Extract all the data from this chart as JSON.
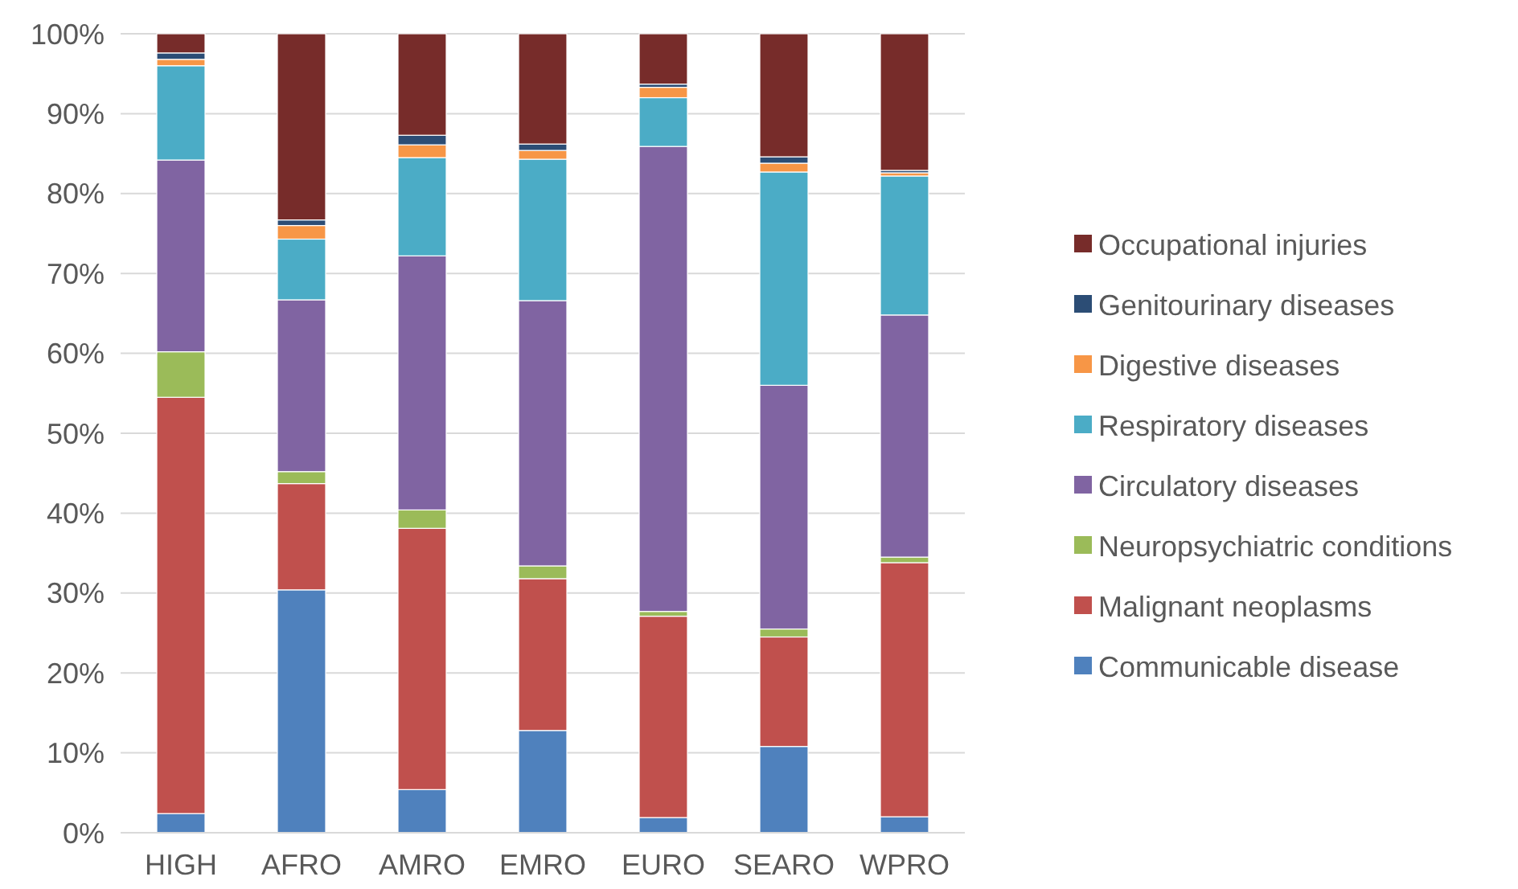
{
  "chart_data": {
    "type": "bar",
    "stacked": true,
    "categories": [
      "HIGH",
      "AFRO",
      "AMRO",
      "EMRO",
      "EURO",
      "SEARO",
      "WPRO"
    ],
    "series": [
      {
        "name": "Communicable disease",
        "color": "#4f81bd",
        "values": [
          2.4,
          30.4,
          5.4,
          12.8,
          1.9,
          10.8,
          2.0
        ]
      },
      {
        "name": "Malignant neoplasms",
        "color": "#c0504d",
        "values": [
          52.1,
          13.3,
          32.7,
          19.0,
          25.2,
          13.7,
          31.8
        ]
      },
      {
        "name": "Neuropsychiatric conditions",
        "color": "#9bbb59",
        "values": [
          5.7,
          1.5,
          2.3,
          1.6,
          0.6,
          1.0,
          0.7
        ]
      },
      {
        "name": "Circulatory diseases",
        "color": "#8064a2",
        "values": [
          24.0,
          21.5,
          31.8,
          33.2,
          58.2,
          30.5,
          30.3
        ]
      },
      {
        "name": "Respiratory diseases",
        "color": "#4bacc6",
        "values": [
          11.8,
          7.6,
          12.3,
          17.7,
          6.1,
          26.7,
          17.4
        ]
      },
      {
        "name": "Digestive diseases",
        "color": "#f79646",
        "values": [
          0.8,
          1.7,
          1.6,
          1.1,
          1.3,
          1.1,
          0.4
        ]
      },
      {
        "name": "Genitourinary diseases",
        "color": "#2c4d75",
        "values": [
          0.8,
          0.7,
          1.2,
          0.8,
          0.4,
          0.8,
          0.3
        ]
      },
      {
        "name": "Occupational injuries",
        "color": "#772c2a",
        "values": [
          2.4,
          23.3,
          12.7,
          13.8,
          6.3,
          15.4,
          17.1
        ]
      }
    ],
    "ylim": [
      0,
      100
    ],
    "yticks": [
      {
        "value": 0,
        "label": "0%"
      },
      {
        "value": 10,
        "label": "10%"
      },
      {
        "value": 20,
        "label": "20%"
      },
      {
        "value": 30,
        "label": "30%"
      },
      {
        "value": 40,
        "label": "40%"
      },
      {
        "value": 50,
        "label": "50%"
      },
      {
        "value": 60,
        "label": "60%"
      },
      {
        "value": 70,
        "label": "70%"
      },
      {
        "value": 80,
        "label": "80%"
      },
      {
        "value": 90,
        "label": "90%"
      },
      {
        "value": 100,
        "label": "100%"
      }
    ],
    "grid": "y",
    "legend": "right"
  }
}
